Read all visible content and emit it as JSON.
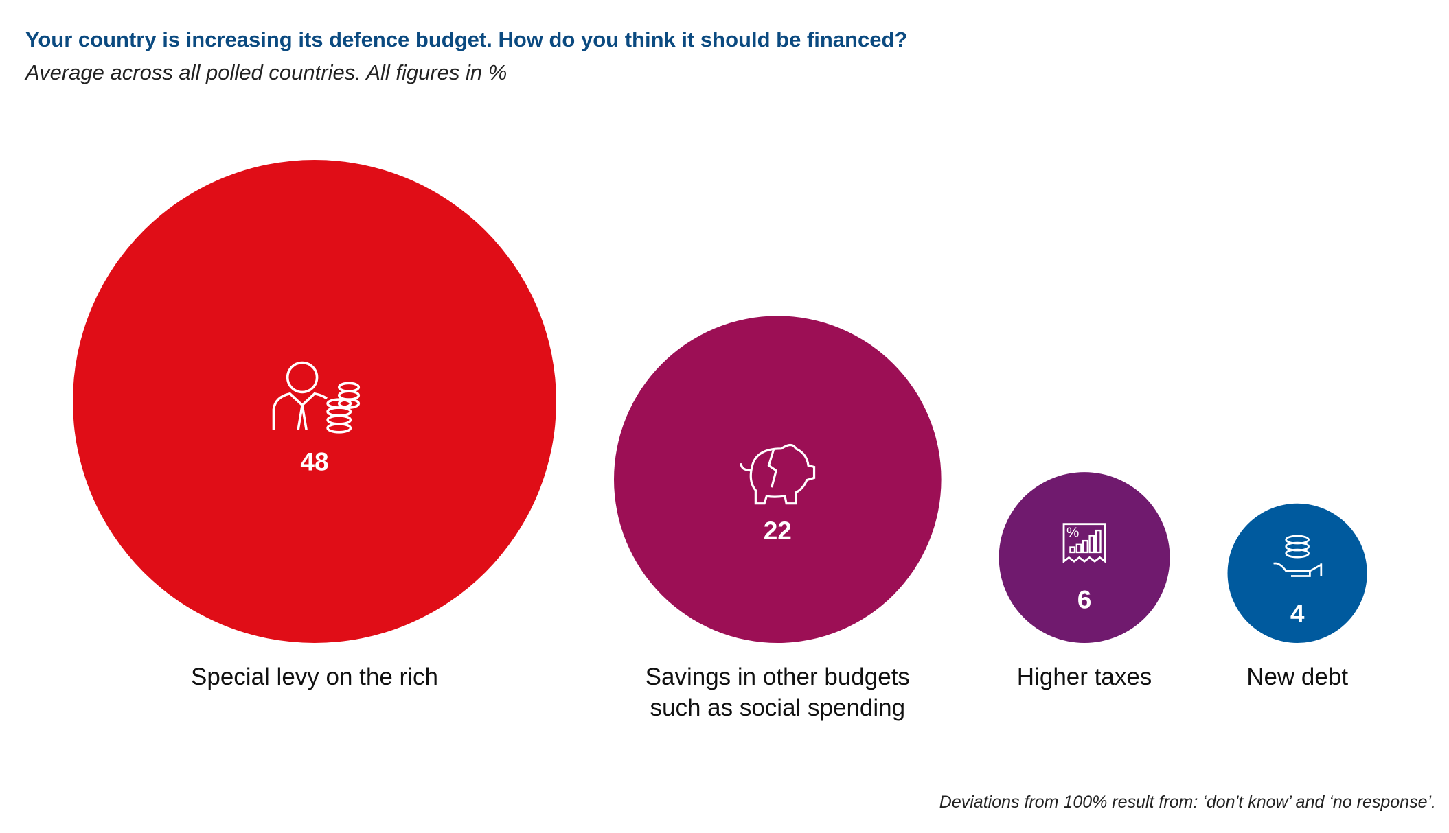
{
  "chart_data": {
    "type": "bubble",
    "title": "Your country is increasing its defence budget. How do you think it should be financed?",
    "subtitle": "Average across all polled countries. All figures in %",
    "note": "Deviations from 100% result from: ‘don't know’ and ‘no response’.",
    "categories": [
      "Special levy on the rich",
      "Savings in other budgets such as social spending",
      "Higher taxes",
      "New debt"
    ],
    "values": [
      48,
      22,
      6,
      4
    ],
    "colors": [
      "#e00d17",
      "#9c0f55",
      "#701a6e",
      "#005a9e"
    ]
  }
}
